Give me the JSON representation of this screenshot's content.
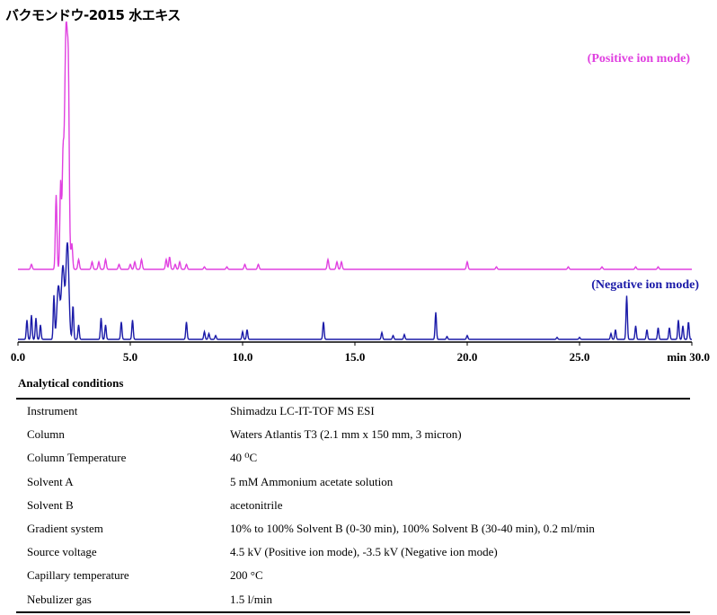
{
  "title": "バクモンドウ-2015 水エキス",
  "chart_data": {
    "type": "line",
    "xlabel": "min",
    "xlim": [
      0,
      30
    ],
    "x_ticks": [
      "0.0",
      "5.0",
      "10.0",
      "15.0",
      "20.0",
      "25.0",
      "min 30.0"
    ],
    "grid": false,
    "series": [
      {
        "name": "(Positive ion mode)",
        "color": "#e040e0",
        "baseline": 0,
        "peaks": [
          [
            0.6,
            2
          ],
          [
            1.7,
            30
          ],
          [
            1.9,
            35
          ],
          [
            2.0,
            33
          ],
          [
            2.15,
            100
          ],
          [
            2.25,
            40
          ],
          [
            2.4,
            10
          ],
          [
            2.7,
            4
          ],
          [
            3.3,
            3
          ],
          [
            3.6,
            3
          ],
          [
            3.9,
            4
          ],
          [
            4.5,
            2
          ],
          [
            5.0,
            2
          ],
          [
            5.2,
            3
          ],
          [
            5.5,
            4
          ],
          [
            6.6,
            4
          ],
          [
            6.75,
            5
          ],
          [
            7.0,
            2
          ],
          [
            7.2,
            3
          ],
          [
            7.5,
            2
          ],
          [
            8.3,
            1
          ],
          [
            9.3,
            1
          ],
          [
            10.1,
            2
          ],
          [
            10.7,
            2
          ],
          [
            13.8,
            4
          ],
          [
            14.2,
            3
          ],
          [
            14.4,
            3
          ],
          [
            20.0,
            3
          ],
          [
            21.3,
            1
          ],
          [
            24.5,
            1
          ],
          [
            26.0,
            1
          ],
          [
            27.5,
            1
          ],
          [
            28.5,
            1
          ]
        ]
      },
      {
        "name": "(Negative ion mode)",
        "color": "#1a1aa8",
        "baseline": 0,
        "peaks": [
          [
            0.4,
            20
          ],
          [
            0.6,
            25
          ],
          [
            0.8,
            22
          ],
          [
            1.0,
            15
          ],
          [
            1.6,
            45
          ],
          [
            1.8,
            55
          ],
          [
            2.0,
            75
          ],
          [
            2.2,
            100
          ],
          [
            2.45,
            35
          ],
          [
            2.7,
            15
          ],
          [
            3.7,
            22
          ],
          [
            3.9,
            15
          ],
          [
            4.6,
            18
          ],
          [
            5.1,
            20
          ],
          [
            7.5,
            18
          ],
          [
            8.3,
            8
          ],
          [
            8.5,
            6
          ],
          [
            8.8,
            4
          ],
          [
            10.0,
            8
          ],
          [
            10.2,
            10
          ],
          [
            13.6,
            18
          ],
          [
            16.2,
            7
          ],
          [
            16.7,
            4
          ],
          [
            17.2,
            5
          ],
          [
            18.6,
            28
          ],
          [
            19.1,
            3
          ],
          [
            20.0,
            4
          ],
          [
            24.0,
            2
          ],
          [
            25.0,
            2
          ],
          [
            26.4,
            6
          ],
          [
            26.6,
            10
          ],
          [
            27.1,
            45
          ],
          [
            27.5,
            14
          ],
          [
            28.0,
            10
          ],
          [
            28.5,
            12
          ],
          [
            29.0,
            12
          ],
          [
            29.4,
            20
          ],
          [
            29.6,
            14
          ],
          [
            29.85,
            18
          ]
        ]
      }
    ]
  },
  "conditions": {
    "heading": "Analytical conditions",
    "rows": [
      {
        "label": "Instrument",
        "value": "Shimadzu LC-IT-TOF MS ESI"
      },
      {
        "label": "Column",
        "value": "Waters Atlantis T3 (2.1 mm x 150 mm, 3 micron)"
      },
      {
        "label": "Column Temperature",
        "value": "40 ⁰C"
      },
      {
        "label": "Solvent A",
        "value": "5 mM Ammonium acetate solution"
      },
      {
        "label": "Solvent B",
        "value": "acetonitrile"
      },
      {
        "label": "Gradient system",
        "value": "10% to 100% Solvent B (0-30 min), 100% Solvent B (30-40 min), 0.2 ml/min"
      },
      {
        "label": "Source voltage",
        "value": "4.5 kV (Positive ion mode), -3.5 kV (Negative ion mode)"
      },
      {
        "label": "Capillary temperature",
        "value": "200 °C"
      },
      {
        "label": "Nebulizer gas",
        "value": "1.5 l/min"
      }
    ]
  }
}
